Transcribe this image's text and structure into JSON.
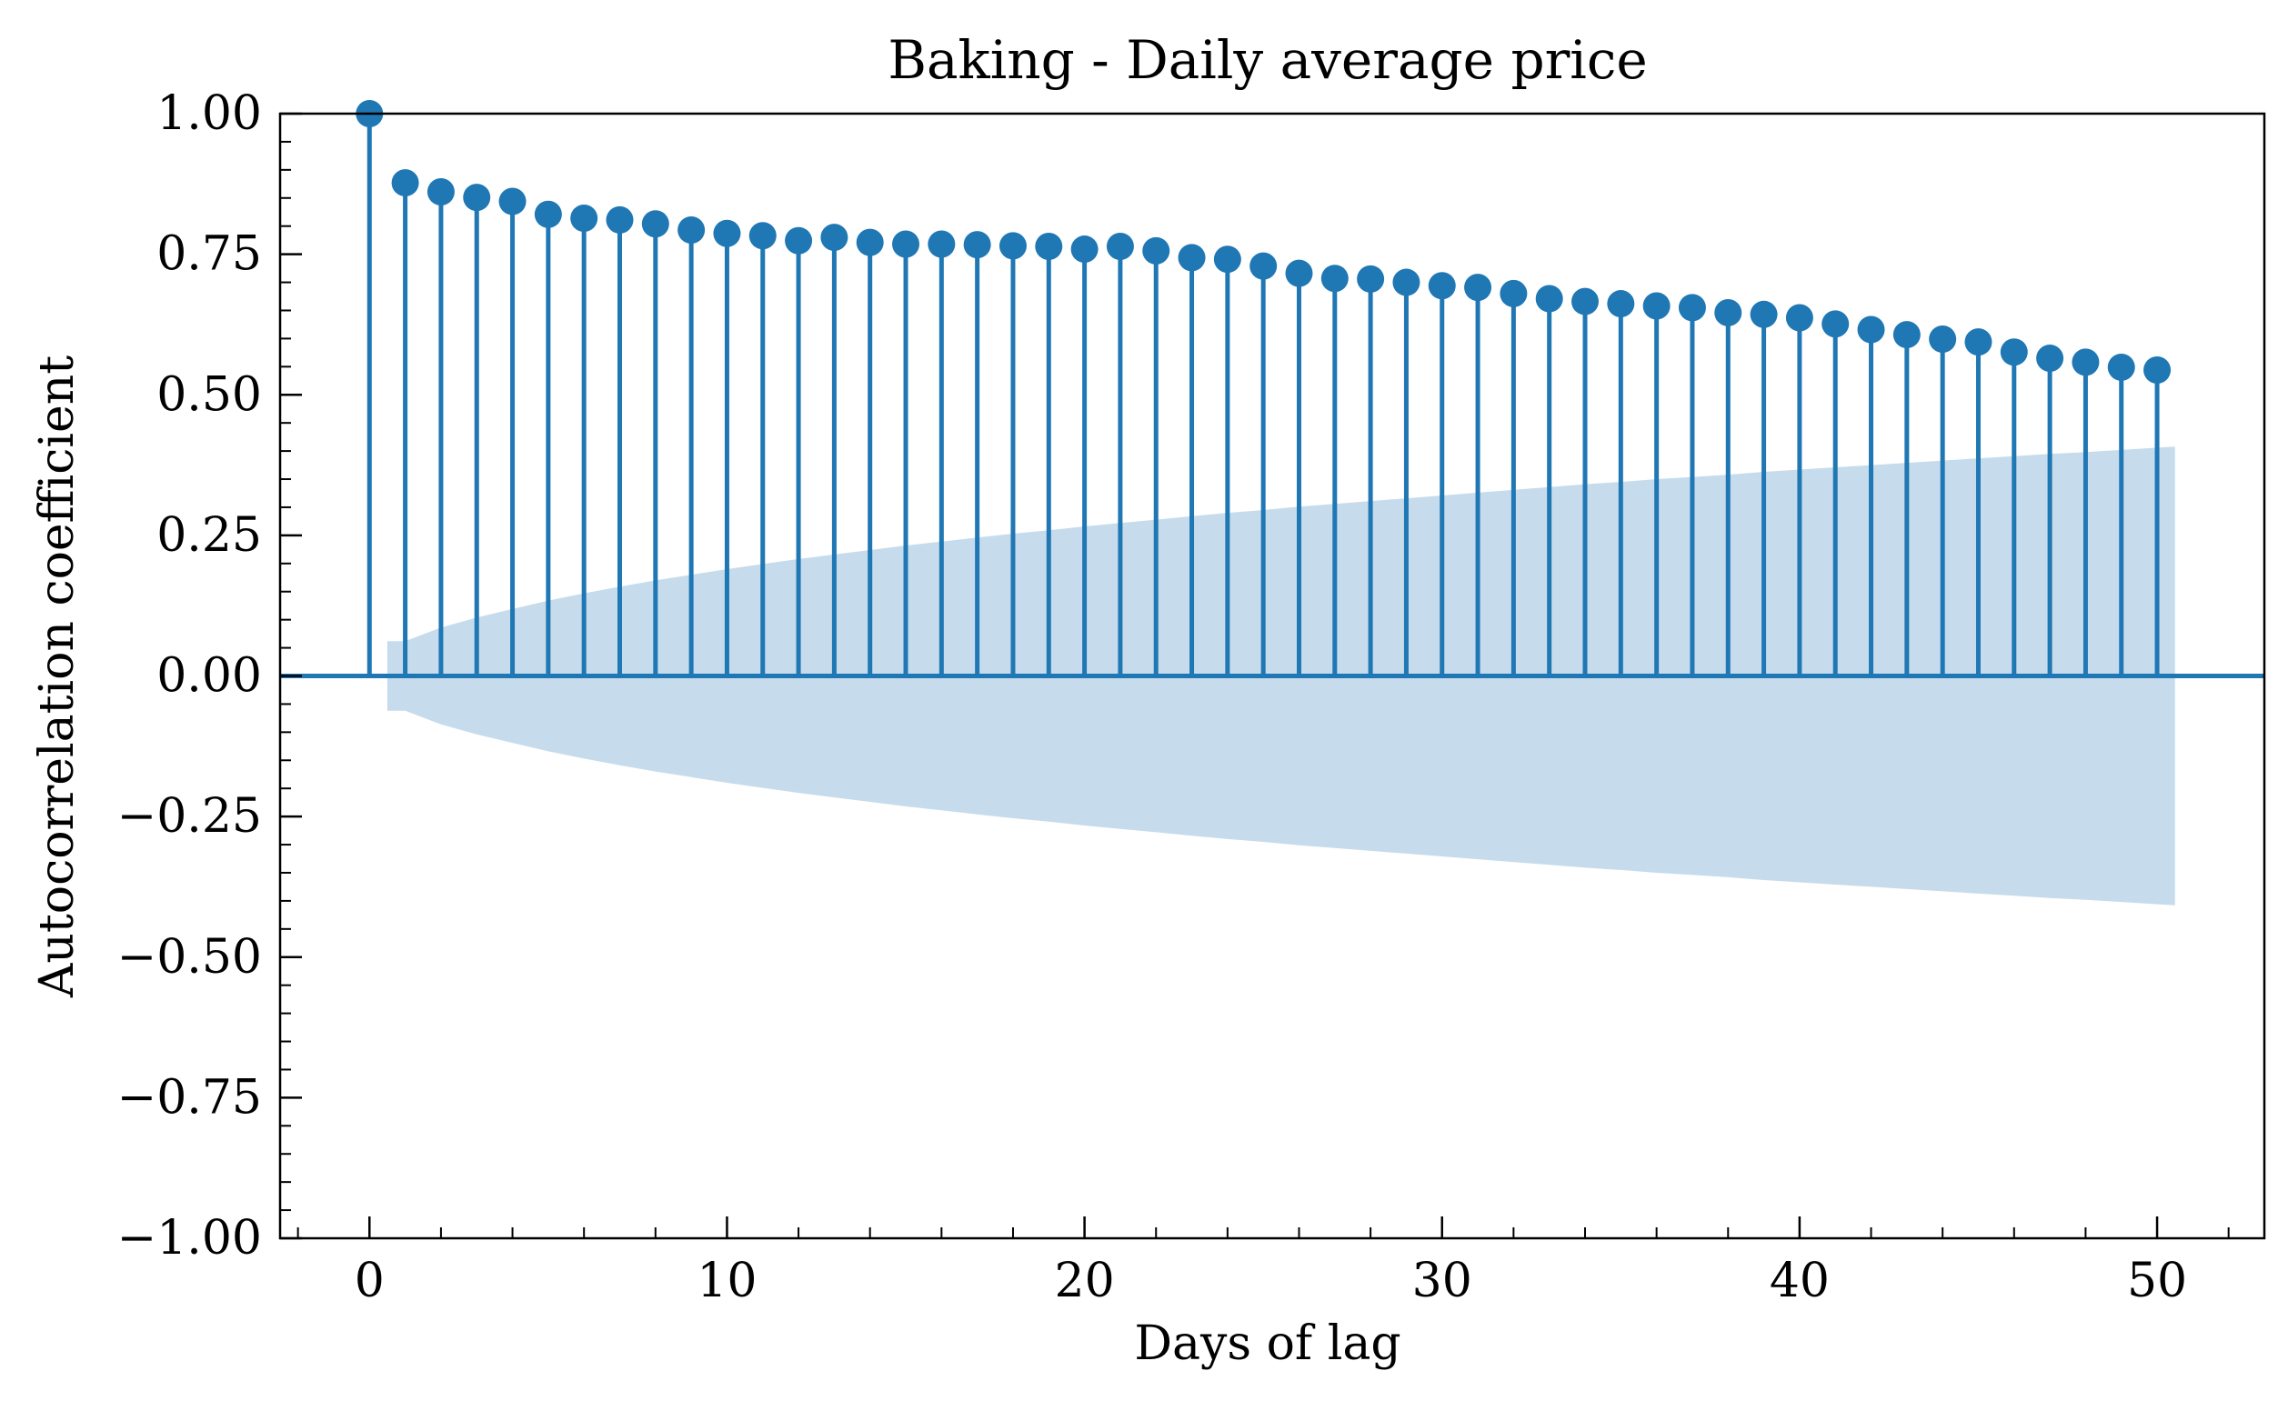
{
  "chart_data": {
    "type": "stem",
    "title": "Baking - Daily average price",
    "xlabel": "Days of lag",
    "ylabel": "Autocorrelation coefficient",
    "xlim": [
      -2.5,
      53
    ],
    "ylim": [
      -1.0,
      1.0
    ],
    "x_ticks": [
      0,
      10,
      20,
      30,
      40,
      50
    ],
    "x_tick_labels": [
      "0",
      "10",
      "20",
      "30",
      "40",
      "50"
    ],
    "y_ticks": [
      1.0,
      0.75,
      0.5,
      0.25,
      0.0,
      -0.25,
      -0.5,
      -0.75,
      -1.0
    ],
    "y_tick_labels": [
      "1.00",
      "0.75",
      "0.50",
      "0.25",
      "0.00",
      "−0.25",
      "−0.50",
      "−0.75",
      "−1.00"
    ],
    "grid": false,
    "colors": {
      "stem": "#1f77b4",
      "band": "#c6dcec"
    },
    "series": [
      {
        "x": [
          0,
          1,
          2,
          3,
          4,
          5,
          6,
          7,
          8,
          9,
          10,
          11,
          12,
          13,
          14,
          15,
          16,
          17,
          18,
          19,
          20,
          21,
          22,
          23,
          24,
          25,
          26,
          27,
          28,
          29,
          30,
          31,
          32,
          33,
          34,
          35,
          36,
          37,
          38,
          39,
          40,
          41,
          42,
          43,
          44,
          45,
          46,
          47,
          48,
          49,
          50
        ],
        "values": [
          1.0,
          0.877,
          0.861,
          0.851,
          0.844,
          0.821,
          0.814,
          0.811,
          0.804,
          0.793,
          0.787,
          0.783,
          0.774,
          0.78,
          0.771,
          0.768,
          0.768,
          0.767,
          0.765,
          0.764,
          0.759,
          0.764,
          0.756,
          0.744,
          0.741,
          0.729,
          0.716,
          0.707,
          0.706,
          0.7,
          0.694,
          0.691,
          0.68,
          0.671,
          0.666,
          0.662,
          0.658,
          0.655,
          0.646,
          0.643,
          0.637,
          0.626,
          0.616,
          0.607,
          0.599,
          0.594,
          0.576,
          0.565,
          0.558,
          0.549,
          0.544
        ]
      }
    ],
    "confidence_band": {
      "x": [
        0.5,
        1,
        2,
        3,
        4,
        5,
        6,
        7,
        8,
        9,
        10,
        11,
        12,
        13,
        14,
        15,
        16,
        17,
        18,
        19,
        20,
        21,
        22,
        23,
        24,
        25,
        26,
        27,
        28,
        29,
        30,
        31,
        32,
        33,
        34,
        35,
        36,
        37,
        38,
        39,
        40,
        41,
        42,
        43,
        44,
        45,
        46,
        47,
        48,
        49,
        50,
        50.5
      ],
      "upper": [
        0.062,
        0.062,
        0.086,
        0.104,
        0.119,
        0.134,
        0.147,
        0.159,
        0.17,
        0.18,
        0.19,
        0.199,
        0.208,
        0.216,
        0.224,
        0.232,
        0.239,
        0.246,
        0.253,
        0.259,
        0.266,
        0.272,
        0.278,
        0.284,
        0.29,
        0.295,
        0.301,
        0.306,
        0.311,
        0.316,
        0.321,
        0.326,
        0.331,
        0.336,
        0.341,
        0.345,
        0.35,
        0.354,
        0.358,
        0.363,
        0.367,
        0.371,
        0.375,
        0.379,
        0.383,
        0.387,
        0.391,
        0.395,
        0.398,
        0.402,
        0.406,
        0.408
      ]
    }
  }
}
